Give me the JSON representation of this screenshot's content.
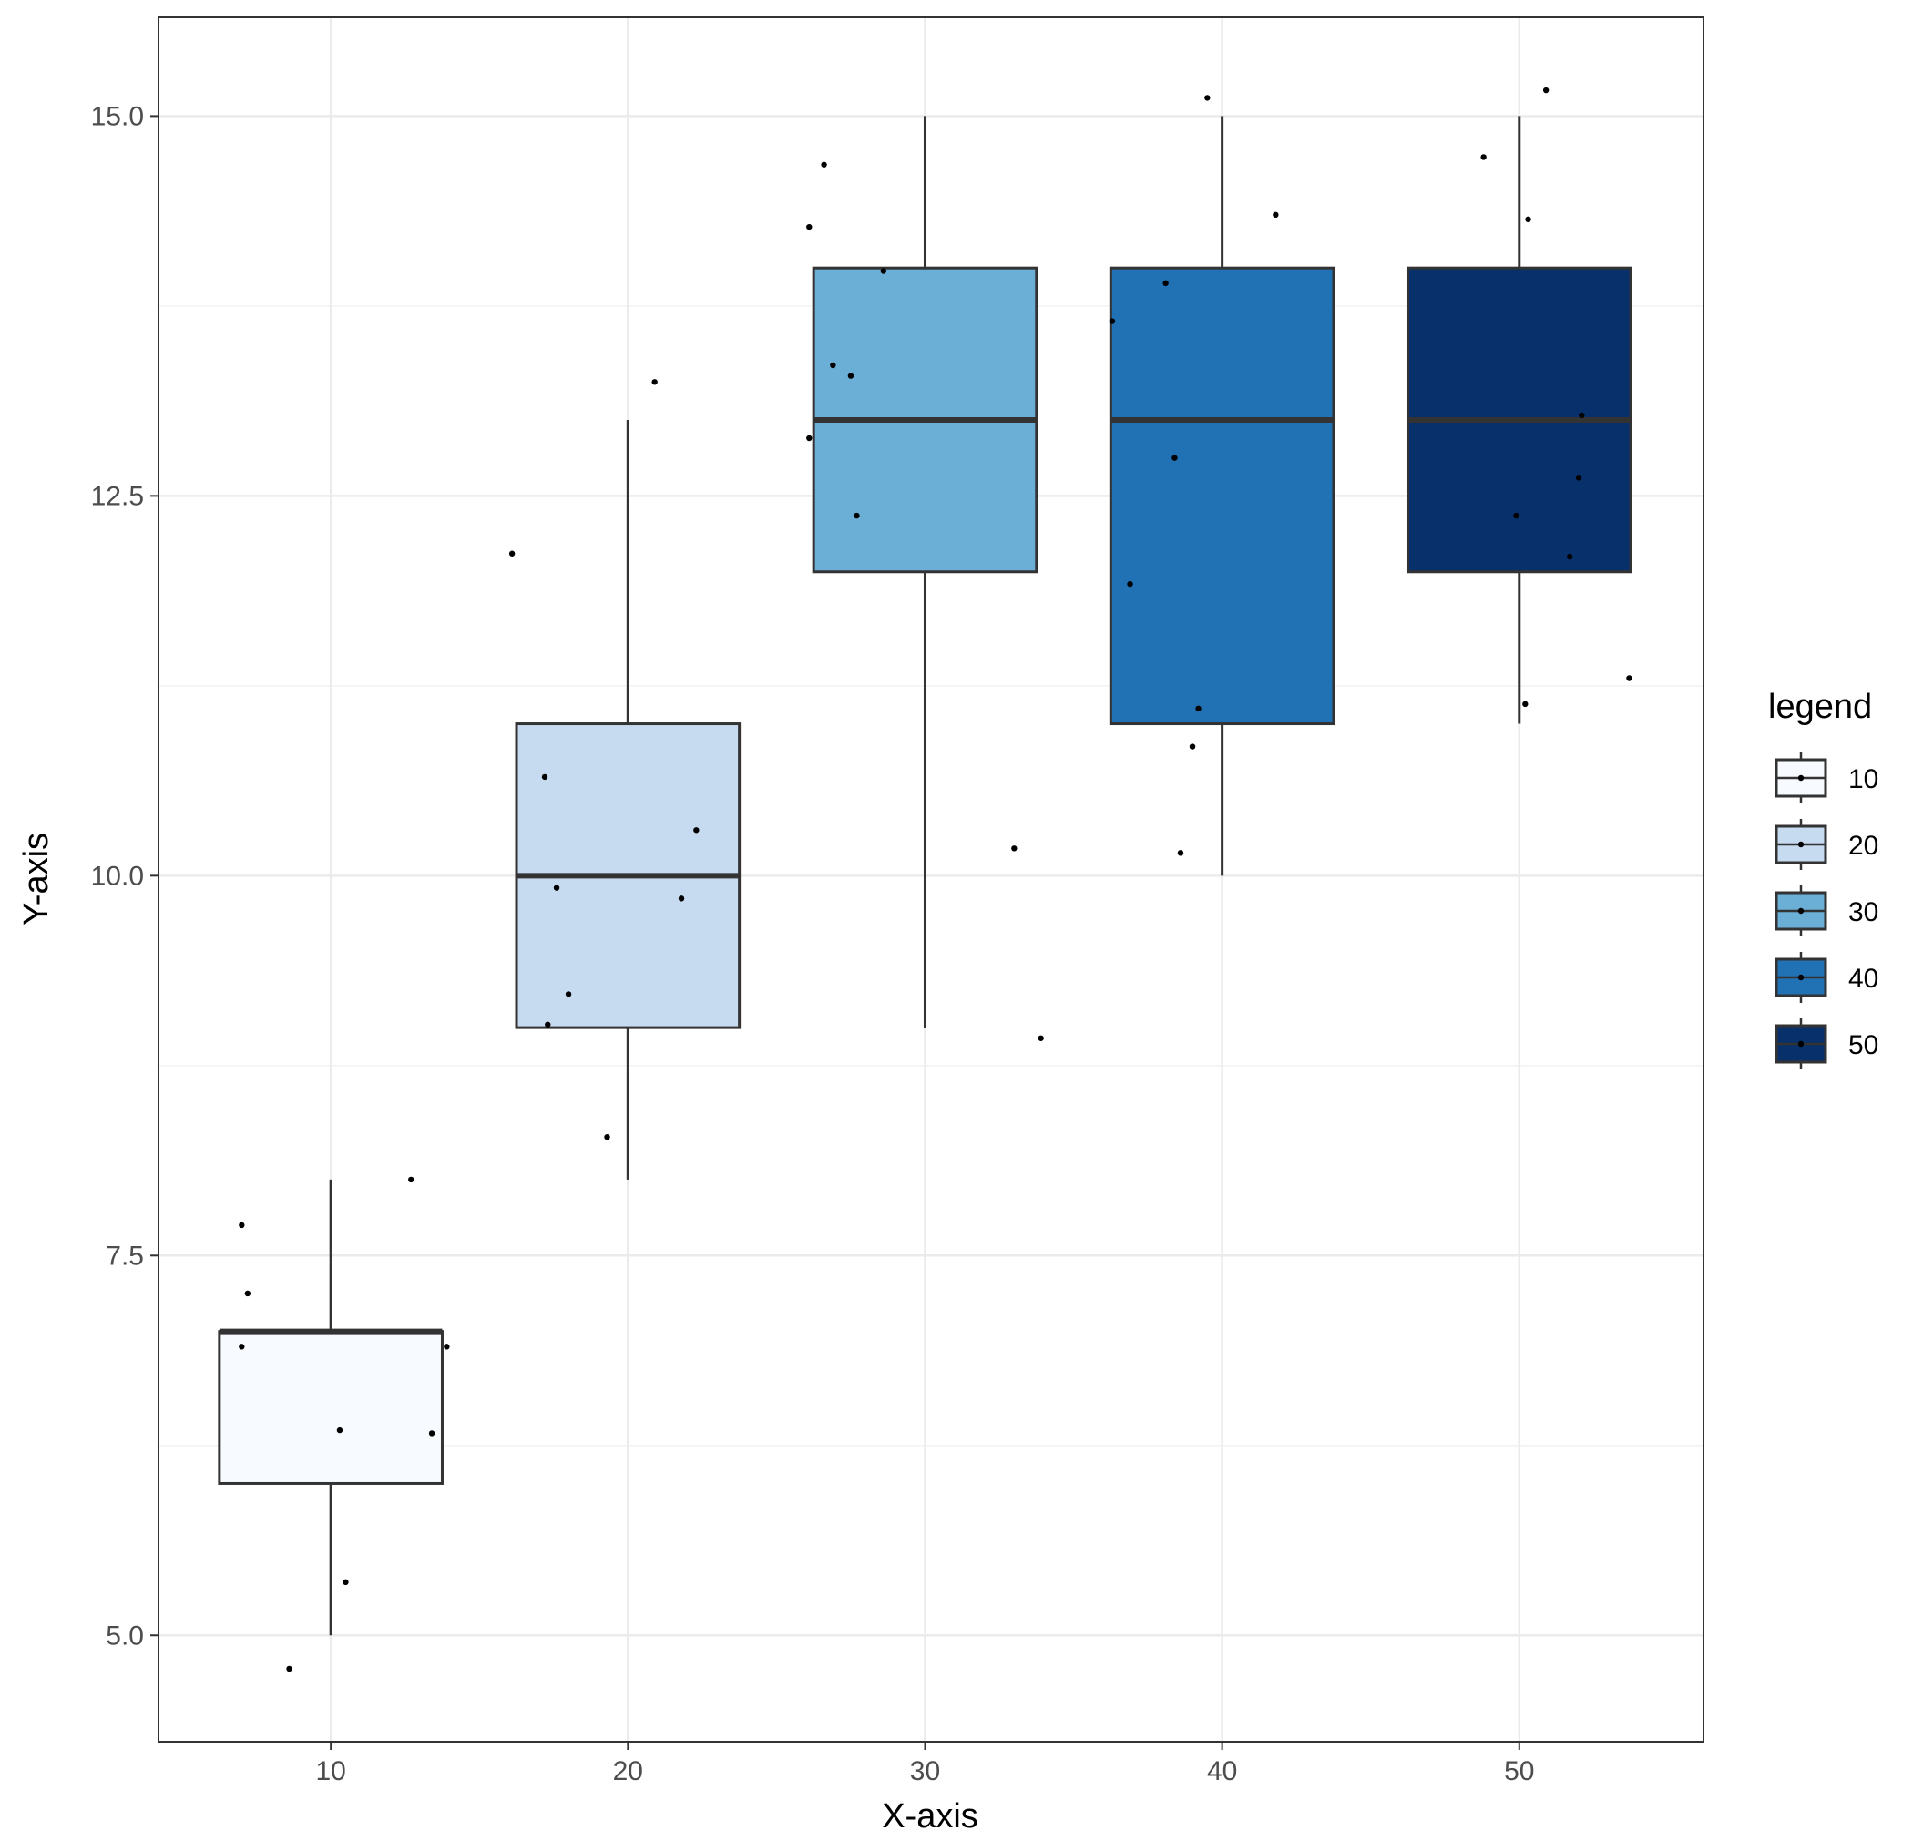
{
  "chart_data": {
    "type": "box",
    "xlabel": "X-axis",
    "ylabel": "Y-axis",
    "xlim": [
      4.2,
      56.2
    ],
    "ylim": [
      4.3,
      15.65
    ],
    "x_ticks": [
      10,
      20,
      30,
      40,
      50
    ],
    "x_tick_labels": [
      "10",
      "20",
      "30",
      "40",
      "50"
    ],
    "y_ticks": [
      5.0,
      7.5,
      10.0,
      12.5,
      15.0
    ],
    "y_tick_labels": [
      "5.0",
      "7.5",
      "10.0",
      "12.5",
      "15.0"
    ],
    "grid": true,
    "legend": {
      "title": "legend",
      "placement": "right",
      "entries": [
        "10",
        "20",
        "30",
        "40",
        "50"
      ]
    },
    "groups": [
      {
        "x": 10,
        "label": "10",
        "color": "#f7fbff",
        "whisker_low": 5,
        "q1": 6,
        "median": 7,
        "q3": 7,
        "whisker_high": 8,
        "points": [
          [
            7.0,
            7.7
          ],
          [
            7.2,
            7.25
          ],
          [
            7.0,
            6.9
          ],
          [
            10.3,
            6.35
          ],
          [
            13.4,
            6.33
          ],
          [
            13.9,
            6.9
          ],
          [
            12.7,
            8.0
          ],
          [
            10.5,
            5.35
          ],
          [
            8.6,
            4.78
          ]
        ]
      },
      {
        "x": 20,
        "label": "20",
        "color": "#c6dbef",
        "whisker_low": 8,
        "q1": 9,
        "median": 10,
        "q3": 11,
        "whisker_high": 13,
        "points": [
          [
            16.1,
            12.12
          ],
          [
            17.2,
            10.65
          ],
          [
            17.6,
            9.92
          ],
          [
            17.3,
            9.02
          ],
          [
            18.0,
            9.22
          ],
          [
            19.3,
            8.28
          ],
          [
            21.8,
            9.85
          ],
          [
            22.3,
            10.3
          ],
          [
            20.9,
            13.25
          ]
        ]
      },
      {
        "x": 30,
        "label": "30",
        "color": "#6baed6",
        "whisker_low": 9,
        "q1": 12,
        "median": 13,
        "q3": 14,
        "whisker_high": 15,
        "points": [
          [
            26.1,
            14.27
          ],
          [
            26.6,
            14.68
          ],
          [
            26.9,
            13.36
          ],
          [
            27.5,
            13.29
          ],
          [
            27.7,
            12.37
          ],
          [
            26.1,
            12.88
          ],
          [
            28.6,
            13.98
          ],
          [
            33.0,
            10.18
          ],
          [
            33.9,
            8.93
          ]
        ]
      },
      {
        "x": 40,
        "label": "40",
        "color": "#2171b5",
        "whisker_low": 10,
        "q1": 11,
        "median": 13,
        "q3": 14,
        "whisker_high": 15,
        "points": [
          [
            39.5,
            15.12
          ],
          [
            41.8,
            14.35
          ],
          [
            38.1,
            13.9
          ],
          [
            36.3,
            13.65
          ],
          [
            38.4,
            12.75
          ],
          [
            36.9,
            11.92
          ],
          [
            39.2,
            11.1
          ],
          [
            39.0,
            10.85
          ],
          [
            38.6,
            10.15
          ]
        ]
      },
      {
        "x": 50,
        "label": "50",
        "color": "#08306b",
        "whisker_low": 11,
        "q1": 12,
        "median": 13,
        "q3": 14,
        "whisker_high": 15,
        "points": [
          [
            50.9,
            15.17
          ],
          [
            48.8,
            14.73
          ],
          [
            50.3,
            14.32
          ],
          [
            52.1,
            13.03
          ],
          [
            52.0,
            12.62
          ],
          [
            49.9,
            12.37
          ],
          [
            51.7,
            12.1
          ],
          [
            53.7,
            11.3
          ],
          [
            50.2,
            11.13
          ]
        ]
      }
    ],
    "colors": {
      "box_outline": "#333333",
      "point": "#000000",
      "grid_major": "#ebebeb",
      "grid_minor": "#f2f2f2",
      "panel_border": "#333333"
    }
  }
}
